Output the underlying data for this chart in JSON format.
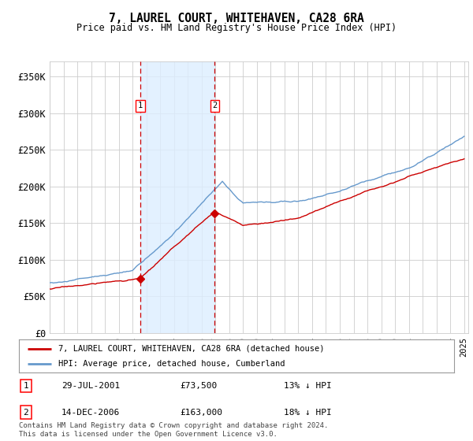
{
  "title": "7, LAUREL COURT, WHITEHAVEN, CA28 6RA",
  "subtitle": "Price paid vs. HM Land Registry's House Price Index (HPI)",
  "ylim": [
    0,
    370000
  ],
  "yticks": [
    0,
    50000,
    100000,
    150000,
    200000,
    250000,
    300000,
    350000
  ],
  "ytick_labels": [
    "£0",
    "£50K",
    "£100K",
    "£150K",
    "£200K",
    "£250K",
    "£300K",
    "£350K"
  ],
  "house_color": "#cc0000",
  "hpi_color": "#6699cc",
  "shade_color": "#ddeeff",
  "marker1_year": 2001.57,
  "marker2_year": 2006.95,
  "marker1_value": 73500,
  "marker2_value": 163000,
  "legend_house": "7, LAUREL COURT, WHITEHAVEN, CA28 6RA (detached house)",
  "legend_hpi": "HPI: Average price, detached house, Cumberland",
  "table_row1": [
    "1",
    "29-JUL-2001",
    "£73,500",
    "13% ↓ HPI"
  ],
  "table_row2": [
    "2",
    "14-DEC-2006",
    "£163,000",
    "18% ↓ HPI"
  ],
  "footnote": "Contains HM Land Registry data © Crown copyright and database right 2024.\nThis data is licensed under the Open Government Licence v3.0.",
  "background_color": "#ffffff",
  "grid_color": "#cccccc"
}
